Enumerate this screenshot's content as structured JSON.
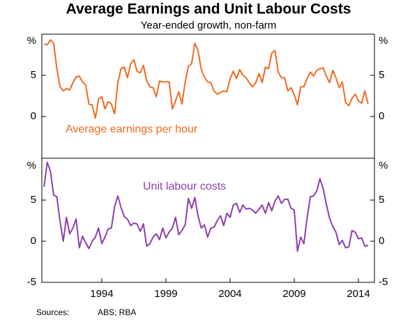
{
  "title": "Average Earnings and Unit Labour Costs",
  "subtitle": "Year-ended growth, non-farm",
  "sources": {
    "label": "Sources:",
    "text": "ABS; RBA"
  },
  "chart_data": [
    {
      "type": "line",
      "xlim": [
        1989.33,
        2015.25
      ],
      "ylim": [
        -5,
        10
      ],
      "yticks": [
        0,
        5,
        {
          "value": 10,
          "label": "%"
        }
      ],
      "x": [
        1989.5,
        1989.75,
        1990,
        1990.25,
        1990.5,
        1990.75,
        1991,
        1991.25,
        1991.5,
        1991.75,
        1992,
        1992.25,
        1992.5,
        1992.75,
        1993,
        1993.25,
        1993.5,
        1993.75,
        1994,
        1994.25,
        1994.5,
        1994.75,
        1995,
        1995.25,
        1995.5,
        1995.75,
        1996,
        1996.25,
        1996.5,
        1996.75,
        1997,
        1997.25,
        1997.5,
        1997.75,
        1998,
        1998.25,
        1998.5,
        1998.75,
        1999,
        1999.25,
        1999.5,
        1999.75,
        2000,
        2000.25,
        2000.5,
        2000.75,
        2001,
        2001.25,
        2001.5,
        2001.75,
        2002,
        2002.25,
        2002.5,
        2002.75,
        2003,
        2003.25,
        2003.5,
        2003.75,
        2004,
        2004.25,
        2004.5,
        2004.75,
        2005,
        2005.25,
        2005.5,
        2005.75,
        2006,
        2006.25,
        2006.5,
        2006.75,
        2007,
        2007.25,
        2007.5,
        2007.75,
        2008,
        2008.25,
        2008.5,
        2008.75,
        2009,
        2009.25,
        2009.5,
        2009.75,
        2010,
        2010.25,
        2010.5,
        2010.75,
        2011,
        2011.25,
        2011.5,
        2011.75,
        2012,
        2012.25,
        2012.5,
        2012.75,
        2013,
        2013.25,
        2013.5,
        2013.75,
        2014,
        2014.25,
        2014.5,
        2014.75
      ],
      "series": [
        {
          "name": "Average earnings per hour",
          "color": "#f26a21",
          "values": [
            8.8,
            8.7,
            9.3,
            8.9,
            5.8,
            3.6,
            3.1,
            3.4,
            3.2,
            4.1,
            4.8,
            4.9,
            4.2,
            3.8,
            1.5,
            1.4,
            -0.2,
            2.1,
            2.4,
            0.9,
            1.8,
            1.5,
            0.3,
            4.1,
            5.8,
            6.0,
            4.7,
            6.4,
            6.9,
            5.5,
            5.3,
            6.2,
            4.3,
            3.6,
            3.5,
            2.4,
            4.3,
            4.2,
            4.2,
            4.2,
            0.9,
            1.9,
            3.0,
            1.5,
            4.2,
            6.1,
            6.4,
            8.9,
            8.0,
            5.7,
            4.8,
            4.2,
            4.1,
            3.1,
            2.7,
            2.9,
            3.1,
            3.0,
            4.6,
            5.5,
            4.6,
            5.7,
            5.0,
            4.7,
            4.1,
            3.6,
            4.1,
            5.2,
            4.1,
            6.0,
            5.8,
            7.7,
            8.0,
            5.4,
            4.7,
            4.7,
            3.1,
            3.5,
            2.6,
            1.4,
            3.6,
            3.6,
            4.6,
            5.4,
            4.9,
            5.6,
            5.8,
            5.9,
            4.9,
            4.1,
            5.6,
            4.7,
            3.5,
            4.2,
            1.7,
            1.3,
            2.2,
            2.7,
            1.9,
            1.6,
            3.1,
            1.5
          ]
        }
      ]
    },
    {
      "type": "line",
      "xlim": [
        1989.33,
        2015.25
      ],
      "ylim": [
        -5,
        10
      ],
      "yticks": [
        -5,
        0,
        5,
        {
          "value": 10,
          "label": "%"
        }
      ],
      "xticks": [
        1994,
        1999,
        2004,
        2009,
        2014
      ],
      "x": [
        1989.5,
        1989.75,
        1990,
        1990.25,
        1990.5,
        1990.75,
        1991,
        1991.25,
        1991.5,
        1991.75,
        1992,
        1992.25,
        1992.5,
        1992.75,
        1993,
        1993.25,
        1993.5,
        1993.75,
        1994,
        1994.25,
        1994.5,
        1994.75,
        1995,
        1995.25,
        1995.5,
        1995.75,
        1996,
        1996.25,
        1996.5,
        1996.75,
        1997,
        1997.25,
        1997.5,
        1997.75,
        1998,
        1998.25,
        1998.5,
        1998.75,
        1999,
        1999.25,
        1999.5,
        1999.75,
        2000,
        2000.25,
        2000.5,
        2000.75,
        2001,
        2001.25,
        2001.5,
        2001.75,
        2002,
        2002.25,
        2002.5,
        2002.75,
        2003,
        2003.25,
        2003.5,
        2003.75,
        2004,
        2004.25,
        2004.5,
        2004.75,
        2005,
        2005.25,
        2005.5,
        2005.75,
        2006,
        2006.25,
        2006.5,
        2006.75,
        2007,
        2007.25,
        2007.5,
        2007.75,
        2008,
        2008.25,
        2008.5,
        2008.75,
        2009,
        2009.25,
        2009.5,
        2009.75,
        2010,
        2010.25,
        2010.5,
        2010.75,
        2011,
        2011.25,
        2011.5,
        2011.75,
        2012,
        2012.25,
        2012.5,
        2012.75,
        2013,
        2013.25,
        2013.5,
        2013.75,
        2014,
        2014.25,
        2014.5,
        2014.75
      ],
      "series": [
        {
          "name": "Unit labour costs",
          "color": "#8d3fb0",
          "values": [
            6.6,
            9.6,
            8.5,
            5.6,
            5.4,
            2.4,
            0.0,
            2.9,
            0.9,
            1.6,
            2.7,
            -0.8,
            0.6,
            -0.2,
            -0.9,
            0.0,
            0.5,
            1.6,
            -0.3,
            0.5,
            1.5,
            1.6,
            4.2,
            5.5,
            4.1,
            3.0,
            2.7,
            1.9,
            2.2,
            2.1,
            1.2,
            2.1,
            -0.6,
            -0.3,
            0.5,
            0.9,
            0.2,
            1.6,
            0.4,
            1.1,
            1.6,
            2.9,
            0.8,
            1.3,
            2.0,
            5.2,
            4.0,
            5.3,
            3.1,
            1.6,
            2.0,
            0.5,
            1.6,
            1.7,
            2.5,
            3.1,
            1.9,
            3.4,
            2.9,
            4.4,
            4.6,
            3.5,
            4.4,
            3.9,
            4.0,
            3.8,
            3.4,
            3.9,
            4.4,
            3.4,
            4.7,
            3.7,
            4.9,
            5.5,
            4.6,
            5.1,
            5.1,
            4.0,
            3.8,
            -1.2,
            0.5,
            -0.3,
            2.8,
            5.4,
            5.5,
            6.1,
            7.6,
            6.4,
            4.5,
            2.8,
            1.8,
            1.1,
            -0.4,
            0.1,
            -0.8,
            -0.7,
            1.3,
            1.1,
            0.3,
            0.4,
            -0.6,
            -0.5
          ]
        }
      ]
    }
  ]
}
